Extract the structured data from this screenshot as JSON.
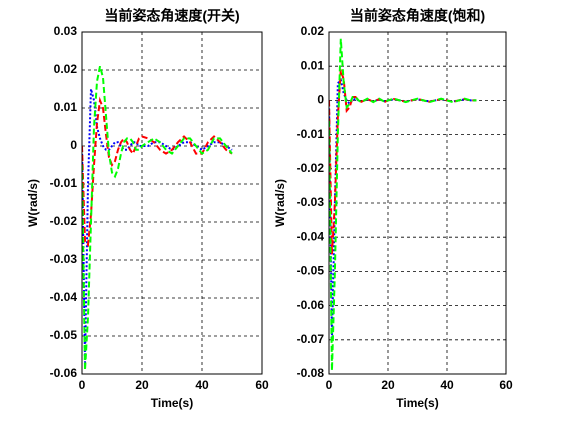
{
  "chart_data": [
    {
      "type": "line",
      "title": "当前姿态角速度(开关)",
      "x_label": "Time(s)",
      "y_label": "W(rad/s)",
      "x": [
        0,
        1,
        2,
        3,
        4,
        5,
        6,
        7,
        8,
        9,
        10,
        11,
        12,
        13,
        14,
        15,
        16,
        17,
        18,
        19,
        20,
        22,
        24,
        26,
        28,
        30,
        32,
        34,
        36,
        38,
        40,
        42,
        44,
        46,
        48,
        50
      ],
      "series": [
        {
          "color": "#0000ff",
          "dash": "2,2",
          "values": [
            0,
            -0.057,
            -0.01,
            0.015,
            0.012,
            0.005,
            0.002,
            0,
            -0.001,
            -0.001,
            0,
            0.001,
            0.001,
            0,
            -0.001,
            -0.001,
            0,
            0.001,
            0.001,
            0,
            0,
            0,
            0.001,
            0.001,
            0,
            -0.001,
            0,
            0.001,
            0.001,
            0,
            -0.001,
            0,
            0.001,
            0.001,
            0,
            -0.001
          ]
        },
        {
          "color": "#ff0000",
          "dash": "6,3",
          "values": [
            0,
            -0.025,
            -0.026,
            -0.018,
            -0.005,
            0.006,
            0.012,
            0.01,
            0.003,
            -0.003,
            -0.005,
            -0.004,
            -0.001,
            0.001,
            0.002,
            0.001,
            -0.001,
            -0.002,
            0,
            0.002,
            0.0025,
            0.002,
            0.001,
            -0.001,
            -0.002,
            -0.001,
            0.001,
            0.0025,
            0.001,
            -0.002,
            -0.002,
            0.001,
            0.0025,
            0.001,
            -0.001,
            -0.002
          ]
        },
        {
          "color": "#00ff00",
          "dash": "6,3",
          "values": [
            -0.005,
            -0.059,
            -0.045,
            -0.02,
            0.005,
            0.017,
            0.021,
            0.018,
            0.008,
            -0.002,
            -0.007,
            -0.008,
            -0.006,
            -0.002,
            0.001,
            0.002,
            0.002,
            0.001,
            -0.001,
            -0.001,
            0,
            0.001,
            0.002,
            0.001,
            -0.001,
            -0.002,
            0,
            0.002,
            0.002,
            0,
            -0.002,
            -0.001,
            0.002,
            0.002,
            0,
            -0.002
          ]
        }
      ],
      "xlim": [
        0,
        60
      ],
      "xticks": [
        0,
        20,
        40,
        60
      ],
      "ylim": [
        -0.06,
        0.03
      ],
      "yticks": [
        -0.06,
        -0.05,
        -0.04,
        -0.03,
        -0.02,
        -0.01,
        0,
        0.01,
        0.02,
        0.03
      ],
      "grid": true
    },
    {
      "type": "line",
      "title": "当前姿态角速度(饱和)",
      "x_label": "Time(s)",
      "y_label": "W(rad/s)",
      "x": [
        0,
        1,
        2,
        3,
        4,
        5,
        6,
        7,
        8,
        9,
        10,
        11,
        12,
        13,
        14,
        15,
        16,
        17,
        18,
        19,
        20,
        22,
        24,
        26,
        28,
        30,
        32,
        34,
        36,
        38,
        40,
        42,
        44,
        46,
        48,
        50
      ],
      "series": [
        {
          "color": "#0000ff",
          "dash": "2,2",
          "values": [
            0,
            -0.07,
            -0.03,
            0.005,
            0.006,
            0.002,
            0,
            -0.001,
            0,
            0.0005,
            0,
            -0.0003,
            0,
            0.0003,
            0,
            -0.0003,
            0,
            0.0003,
            0,
            -0.0003,
            0,
            0.0003,
            0,
            -0.0003,
            0,
            0.0003,
            0,
            -0.0003,
            0,
            0.0003,
            0,
            -0.0003,
            0,
            0.0003,
            0,
            0
          ]
        },
        {
          "color": "#ff0000",
          "dash": "6,3",
          "values": [
            0,
            -0.045,
            -0.03,
            -0.005,
            0.009,
            0.006,
            -0.003,
            -0.002,
            0.001,
            0.001,
            0,
            -0.0004,
            0,
            0.0004,
            0,
            -0.0004,
            0,
            0.0004,
            0,
            -0.0004,
            0,
            0.0004,
            0,
            -0.0004,
            0,
            0.0004,
            0,
            -0.0004,
            0,
            0.0004,
            0,
            -0.0004,
            0,
            0.0004,
            0,
            0
          ]
        },
        {
          "color": "#00ff00",
          "dash": "6,3",
          "values": [
            -0.006,
            -0.079,
            -0.05,
            -0.01,
            0.018,
            0.005,
            -0.002,
            -0.001,
            0.001,
            0.001,
            0,
            -0.0005,
            0,
            0.0005,
            0,
            -0.0005,
            0,
            0.0005,
            0,
            -0.0005,
            0,
            0.0005,
            0,
            -0.0005,
            0,
            0.0005,
            0,
            -0.0005,
            0,
            0.0005,
            0,
            -0.0005,
            0,
            0.0005,
            0,
            0
          ]
        }
      ],
      "xlim": [
        0,
        60
      ],
      "xticks": [
        0,
        20,
        40,
        60
      ],
      "ylim": [
        -0.08,
        0.02
      ],
      "yticks": [
        -0.08,
        -0.07,
        -0.06,
        -0.05,
        -0.04,
        -0.03,
        -0.02,
        -0.01,
        0,
        0.01,
        0.02
      ],
      "grid": true
    }
  ]
}
